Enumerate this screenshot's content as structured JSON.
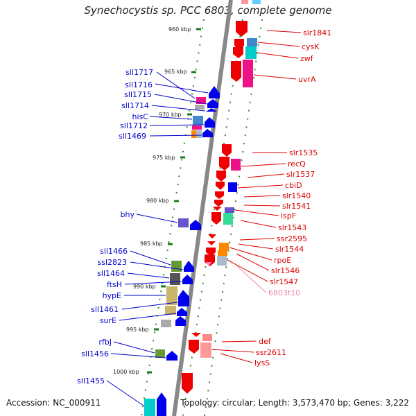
{
  "title": "Synechocystis sp. PCC 6803, complete genome",
  "accession": "Accession: NC_000911",
  "topology": "Topology: circular; Length: 3,573,470 bp; Genes: 3,222",
  "ticks": [
    "960 kbp",
    "965 kbp",
    "970 kbp",
    "975 kbp",
    "980 kbp",
    "985 kbp",
    "990 kbp",
    "995 kbp",
    "1000 kbp"
  ],
  "genes_left": [
    "sll1717",
    "sll1716",
    "sll1715",
    "sll1714",
    "hisC",
    "sll1712",
    "sll1469",
    "bhy",
    "sll1466",
    "ssl2823",
    "sll1464",
    "ftsH",
    "hypE",
    "sll1461",
    "surE",
    "rfbJ",
    "sll1456",
    "sll1455"
  ],
  "genes_right": [
    "slr1841",
    "cysK",
    "zwf",
    "uvrA",
    "slr1535",
    "recQ",
    "slr1537",
    "cbiD",
    "slr1540",
    "slr1541",
    "ispF",
    "slr1543",
    "ssr2595",
    "slr1544",
    "rpoE",
    "slr1546",
    "slr1547",
    "6803t10",
    "def",
    "ssr2611",
    "lysS"
  ],
  "colors": {
    "left_label": "#0000cc",
    "right_label": "#dd0000",
    "trna_label": "#ee88aa",
    "axis": "#888888",
    "tick": "#1a7a1a"
  }
}
